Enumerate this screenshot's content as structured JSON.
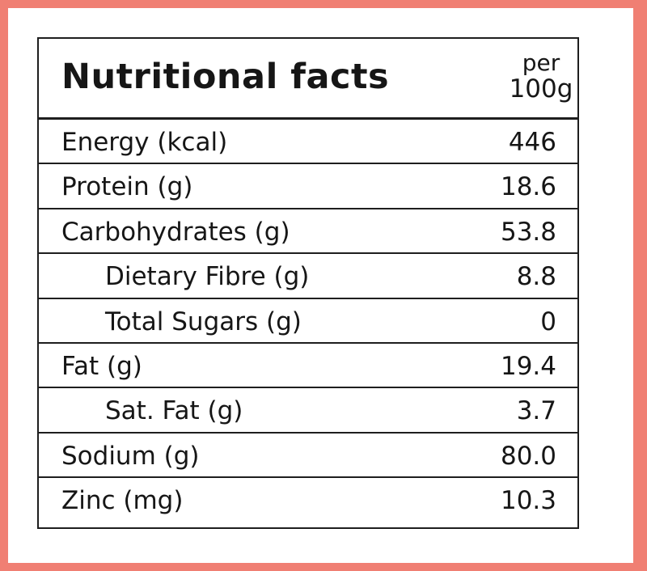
{
  "header": {
    "title": "Nutritional facts",
    "per_line1": "per",
    "per_line2": "100g"
  },
  "rows": [
    {
      "label": "Energy (kcal)",
      "value": "446"
    },
    {
      "label": "Protein (g)",
      "value": "18.6"
    },
    {
      "label": "Carbohydrates (g)",
      "value": "53.8"
    },
    {
      "label": "Dietary Fibre (g)",
      "value": "8.8"
    },
    {
      "label": "Total Sugars (g)",
      "value": "0"
    },
    {
      "label": "Fat (g)",
      "value": "19.4"
    },
    {
      "label": "Sat. Fat (g)",
      "value": "3.7"
    },
    {
      "label": "Sodium (g)",
      "value": "80.0"
    },
    {
      "label": "Zinc (mg)",
      "value": "10.3"
    }
  ],
  "colors": {
    "frame": "#f07f73",
    "background": "#ffffff",
    "text": "#161616",
    "border": "#1e1e1e"
  }
}
